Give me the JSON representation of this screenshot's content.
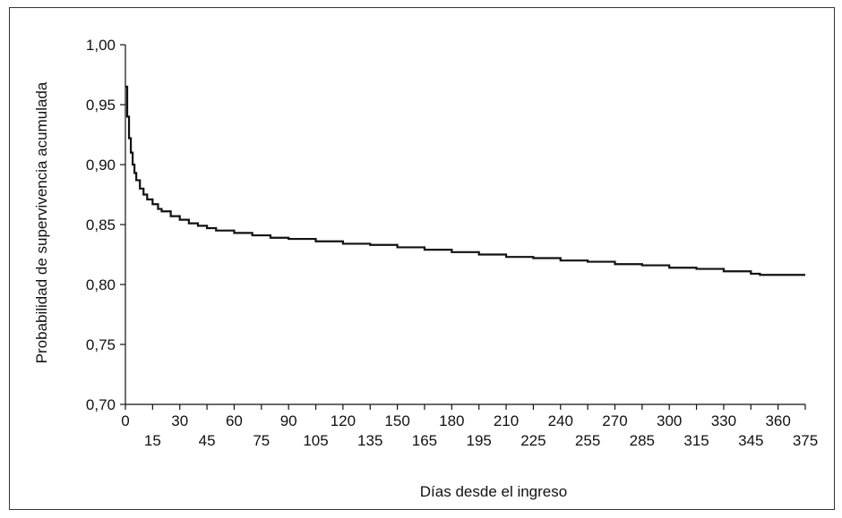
{
  "chart_data": {
    "type": "line",
    "step": true,
    "title": "",
    "xlabel": "Días desde el ingreso",
    "ylabel": "Probabilidad de supervivencia acumulada",
    "xlim": [
      0,
      375
    ],
    "ylim": [
      0.7,
      1.0
    ],
    "x_ticks_top": [
      "0",
      "30",
      "60",
      "90",
      "120",
      "150",
      "180",
      "210",
      "240",
      "270",
      "300",
      "330",
      "360"
    ],
    "x_ticks_bottom": [
      "15",
      "45",
      "75",
      "105",
      "135",
      "165",
      "195",
      "225",
      "255",
      "285",
      "315",
      "345",
      "375"
    ],
    "y_ticks": [
      "0,70",
      "0,75",
      "0,80",
      "0,85",
      "0,90",
      "0,95",
      "1,00"
    ],
    "grid": false,
    "series": [
      {
        "color": "#111111",
        "x": [
          0,
          1,
          2,
          3,
          4,
          5,
          6,
          8,
          10,
          12,
          15,
          18,
          20,
          25,
          30,
          35,
          40,
          45,
          50,
          60,
          70,
          80,
          90,
          105,
          120,
          135,
          150,
          165,
          180,
          195,
          210,
          225,
          240,
          255,
          270,
          285,
          300,
          315,
          330,
          345,
          350,
          375
        ],
        "y": [
          0.965,
          0.94,
          0.922,
          0.91,
          0.9,
          0.893,
          0.887,
          0.88,
          0.875,
          0.871,
          0.867,
          0.863,
          0.861,
          0.857,
          0.854,
          0.851,
          0.849,
          0.847,
          0.845,
          0.843,
          0.841,
          0.839,
          0.838,
          0.836,
          0.834,
          0.833,
          0.831,
          0.829,
          0.827,
          0.825,
          0.823,
          0.822,
          0.82,
          0.819,
          0.817,
          0.816,
          0.814,
          0.813,
          0.811,
          0.809,
          0.808,
          0.808
        ]
      }
    ]
  }
}
